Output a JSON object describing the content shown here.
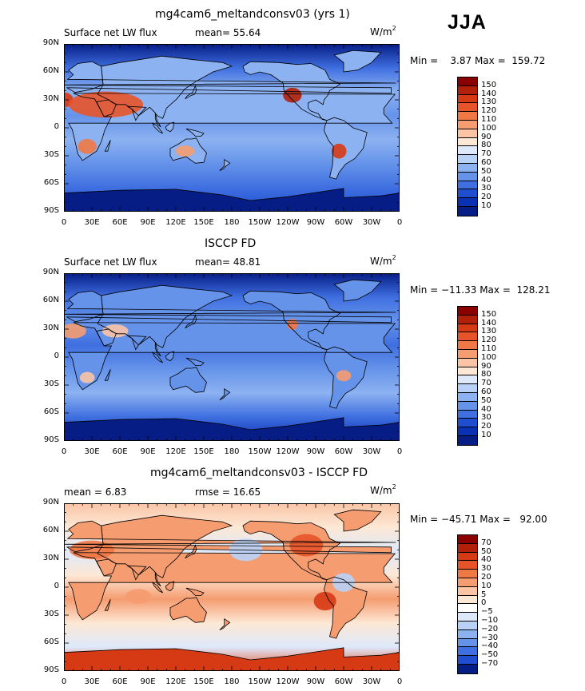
{
  "season": "JJA",
  "units_base": "W/m",
  "units_exp": "2",
  "lat_ticks": [
    "90N",
    "60N",
    "30N",
    "0",
    "30S",
    "60S",
    "90S"
  ],
  "lon_ticks": [
    "0",
    "30E",
    "60E",
    "90E",
    "120E",
    "150E",
    "180",
    "150W",
    "120W",
    "90W",
    "60W",
    "30W",
    "0"
  ],
  "panels": [
    {
      "title": "mg4cam6_meltandconsv03 (yrs 1)",
      "left_label": "Surface net LW flux",
      "center_label": "mean=   55.64",
      "minmax": "Min =    3.87 Max =  159.72",
      "levels": [
        "150",
        "140",
        "130",
        "120",
        "110",
        "100",
        "90",
        "80",
        "70",
        "60",
        "50",
        "40",
        "30",
        "20",
        "10"
      ],
      "colors": [
        "#8b0000",
        "#b2200a",
        "#d63a14",
        "#e8542a",
        "#f07845",
        "#f59c70",
        "#fac4a5",
        "#fde8d5",
        "#dde9fb",
        "#b9d1f7",
        "#8cb2f1",
        "#6593ea",
        "#3f6fe0",
        "#1f4fd0",
        "#0a30b4",
        "#061d86"
      ]
    },
    {
      "title": "ISCCP FD",
      "left_label": "Surface net LW flux",
      "center_label": "mean=   48.81",
      "minmax": "Min = −11.33 Max =  128.21",
      "levels": [
        "150",
        "140",
        "130",
        "120",
        "110",
        "100",
        "90",
        "80",
        "70",
        "60",
        "50",
        "40",
        "30",
        "20",
        "10"
      ],
      "colors": [
        "#8b0000",
        "#b2200a",
        "#d63a14",
        "#e8542a",
        "#f07845",
        "#f59c70",
        "#fac4a5",
        "#fde8d5",
        "#dde9fb",
        "#b9d1f7",
        "#8cb2f1",
        "#6593ea",
        "#3f6fe0",
        "#1f4fd0",
        "#0a30b4",
        "#061d86"
      ]
    },
    {
      "title": "mg4cam6_meltandconsv03 - ISCCP FD",
      "left_label": "mean =    6.83",
      "center_label": "rmse =   16.65",
      "minmax": "Min = −45.71 Max =   92.00",
      "levels": [
        "70",
        "50",
        "40",
        "30",
        "20",
        "10",
        "5",
        "0",
        "−5",
        "−10",
        "−20",
        "−30",
        "−40",
        "−50",
        "−70"
      ],
      "colors": [
        "#8b0000",
        "#b2200a",
        "#d63a14",
        "#e8542a",
        "#f07845",
        "#f59c70",
        "#fac4a5",
        "#fde8d5",
        "#ffffff",
        "#dde9fb",
        "#b9d1f7",
        "#8cb2f1",
        "#6593ea",
        "#3f6fe0",
        "#1f4fd0",
        "#061d86"
      ]
    }
  ],
  "chart_data": [
    {
      "type": "heatmap",
      "title": "mg4cam6_meltandconsv03 (yrs 1)",
      "field": "Surface net LW flux",
      "units": "W/m2",
      "mean": 55.64,
      "min": 3.87,
      "max": 159.72,
      "x_range": [
        0,
        360
      ],
      "y_range": [
        -90,
        90
      ],
      "contour_levels": [
        10,
        20,
        30,
        40,
        50,
        60,
        70,
        80,
        90,
        100,
        110,
        120,
        130,
        140,
        150
      ]
    },
    {
      "type": "heatmap",
      "title": "ISCCP FD",
      "field": "Surface net LW flux",
      "units": "W/m2",
      "mean": 48.81,
      "min": -11.33,
      "max": 128.21,
      "x_range": [
        0,
        360
      ],
      "y_range": [
        -90,
        90
      ],
      "contour_levels": [
        10,
        20,
        30,
        40,
        50,
        60,
        70,
        80,
        90,
        100,
        110,
        120,
        130,
        140,
        150
      ]
    },
    {
      "type": "heatmap",
      "title": "mg4cam6_meltandconsv03 - ISCCP FD",
      "units": "W/m2",
      "mean": 6.83,
      "rmse": 16.65,
      "min": -45.71,
      "max": 92.0,
      "x_range": [
        0,
        360
      ],
      "y_range": [
        -90,
        90
      ],
      "contour_levels": [
        -70,
        -50,
        -40,
        -30,
        -20,
        -10,
        -5,
        0,
        5,
        10,
        20,
        30,
        40,
        50,
        70
      ]
    }
  ]
}
